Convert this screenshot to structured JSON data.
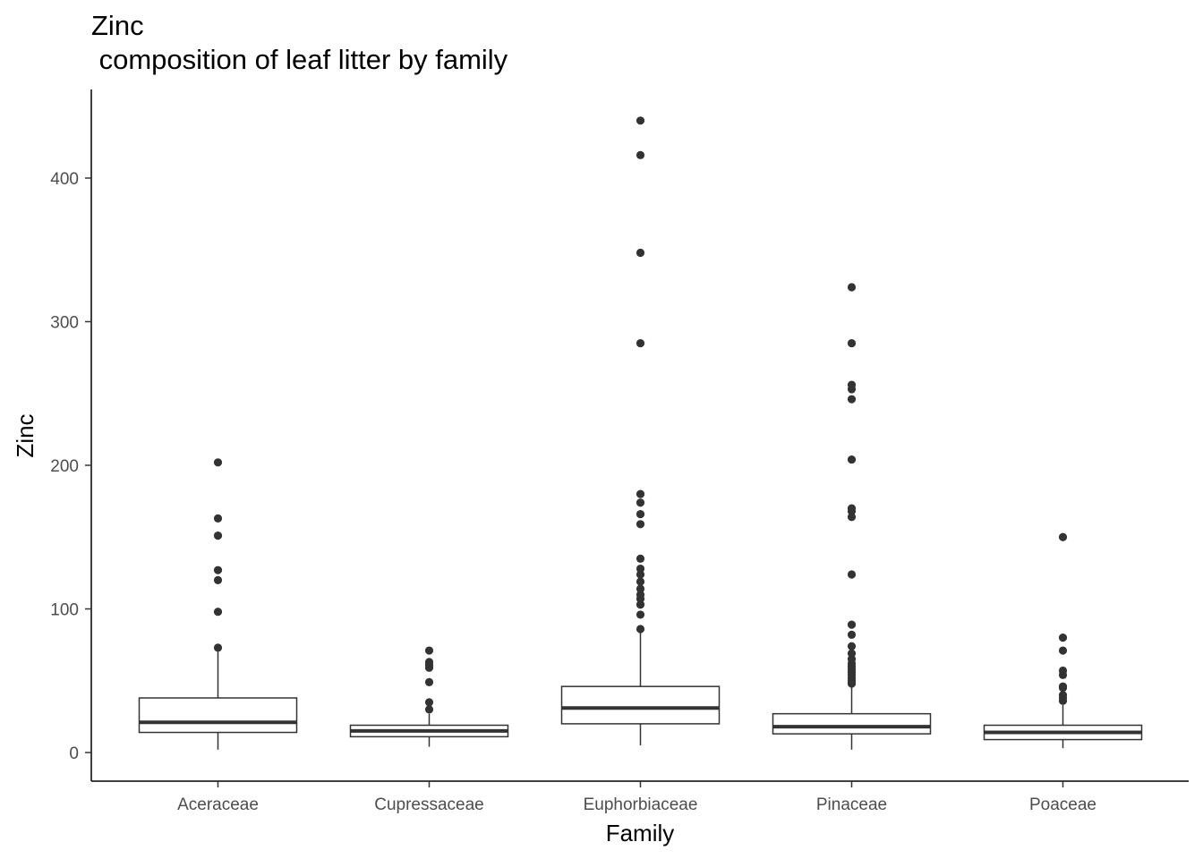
{
  "title_line1": "Zinc",
  "title_line2": " composition of leaf litter by family",
  "chart_data": {
    "type": "boxplot",
    "xlabel": "Family",
    "ylabel": "Zinc",
    "ylim": [
      -20,
      460
    ],
    "yticks": [
      0,
      100,
      200,
      300,
      400
    ],
    "categories": [
      "Aceraceae",
      "Cupressaceae",
      "Euphorbiaceae",
      "Pinaceae",
      "Poaceae"
    ],
    "boxes": [
      {
        "category": "Aceraceae",
        "whisker_low": 2,
        "q1": 14,
        "median": 21,
        "q3": 38,
        "whisker_high": 72,
        "outliers": [
          73,
          98,
          120,
          127,
          151,
          163,
          202
        ]
      },
      {
        "category": "Cupressaceae",
        "whisker_low": 4,
        "q1": 11,
        "median": 15,
        "q3": 19,
        "whisker_high": 27,
        "outliers": [
          30,
          35,
          49,
          59,
          61,
          63,
          71
        ]
      },
      {
        "category": "Euphorbiaceae",
        "whisker_low": 5,
        "q1": 20,
        "median": 31,
        "q3": 46,
        "whisker_high": 85,
        "outliers": [
          86,
          96,
          103,
          107,
          110,
          114,
          119,
          124,
          128,
          135,
          159,
          166,
          174,
          180,
          285,
          348,
          416,
          440
        ]
      },
      {
        "category": "Pinaceae",
        "whisker_low": 2,
        "q1": 13,
        "median": 18,
        "q3": 27,
        "whisker_high": 46,
        "outliers": [
          48,
          50,
          52,
          54,
          56,
          58,
          60,
          62,
          65,
          69,
          74,
          82,
          89,
          124,
          164,
          168,
          170,
          204,
          246,
          253,
          256,
          285,
          324
        ]
      },
      {
        "category": "Poaceae",
        "whisker_low": 3,
        "q1": 9,
        "median": 14,
        "q3": 19,
        "whisker_high": 33,
        "outliers": [
          36,
          38,
          40,
          45,
          46,
          54,
          57,
          71,
          80,
          150
        ]
      }
    ],
    "grid": false,
    "legend": "none"
  }
}
